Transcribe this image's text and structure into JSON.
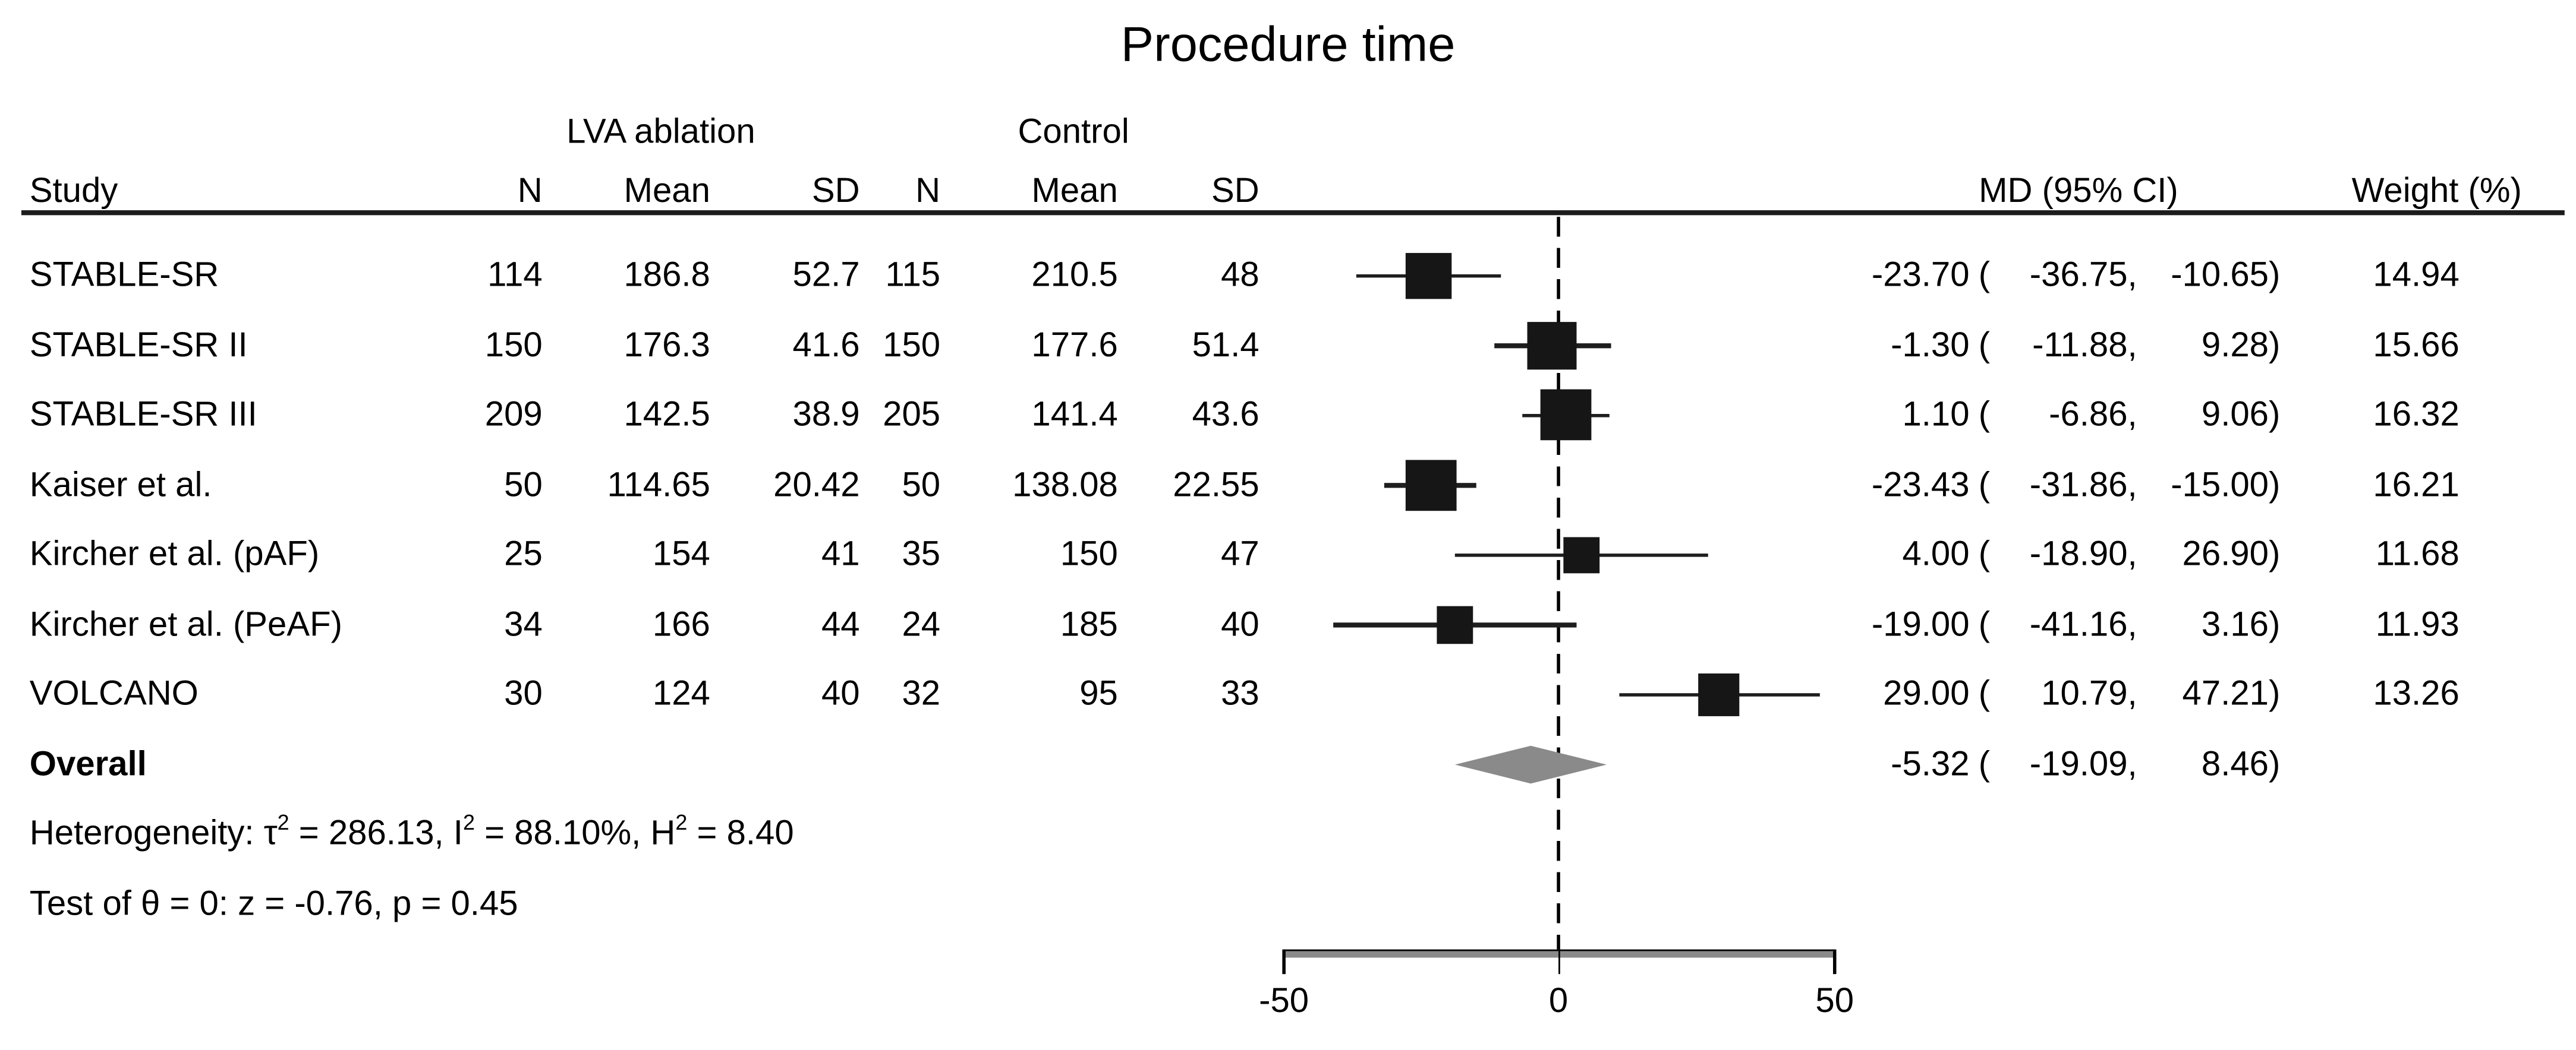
{
  "title": "Procedure time",
  "labels": {
    "group1": "LVA ablation",
    "group2": "Control",
    "study": "Study",
    "n": "N",
    "mean": "Mean",
    "sd": "SD",
    "md_ci": "MD (95% CI)",
    "weight": "Weight (%)",
    "open_paren": "(",
    "close_paren": ")",
    "overall": "Overall",
    "het_prefix": "Heterogeneity: τ",
    "sup2": "2",
    "het_mid1": " = 286.13, I",
    "het_mid2": " = 88.10%, H",
    "het_tail": " = 8.40",
    "test_line": "Test of θ = 0: z = -0.76, p = 0.45"
  },
  "chart_data": {
    "type": "forest",
    "title": "Procedure time",
    "effect_measure": "MD (95% CI)",
    "axis": {
      "ticks": [
        -50,
        0,
        50
      ],
      "tick_labels": [
        "-50",
        "0",
        "50"
      ],
      "zero_line": 0,
      "xlim": [
        -58,
        58
      ]
    },
    "columns": [
      "Study",
      "N",
      "Mean",
      "SD",
      "N",
      "Mean",
      "SD",
      "MD (95% CI)",
      "Weight (%)"
    ],
    "groups": [
      "LVA ablation",
      "Control"
    ],
    "rows": [
      {
        "study": "STABLE-SR",
        "n1": "114",
        "mean1": "186.8",
        "sd1": "52.7",
        "n2": "115",
        "mean2": "210.5",
        "sd2": "48",
        "md": -23.7,
        "ci_lo": -36.75,
        "ci_hi": -10.65,
        "weight": 14.94,
        "md_label": "-23.70",
        "ci_lo_label": "-36.75,",
        "ci_hi_label": "-10.65",
        "weight_label": "14.94"
      },
      {
        "study": "STABLE-SR II",
        "n1": "150",
        "mean1": "176.3",
        "sd1": "41.6",
        "n2": "150",
        "mean2": "177.6",
        "sd2": "51.4",
        "md": -1.3,
        "ci_lo": -11.88,
        "ci_hi": 9.28,
        "weight": 15.66,
        "md_label": "-1.30",
        "ci_lo_label": "-11.88,",
        "ci_hi_label": "9.28",
        "weight_label": "15.66"
      },
      {
        "study": "STABLE-SR III",
        "n1": "209",
        "mean1": "142.5",
        "sd1": "38.9",
        "n2": "205",
        "mean2": "141.4",
        "sd2": "43.6",
        "md": 1.1,
        "ci_lo": -6.86,
        "ci_hi": 9.06,
        "weight": 16.32,
        "md_label": "1.10",
        "ci_lo_label": "-6.86,",
        "ci_hi_label": "9.06",
        "weight_label": "16.32"
      },
      {
        "study": "Kaiser et al.",
        "n1": "50",
        "mean1": "114.65",
        "sd1": "20.42",
        "n2": "50",
        "mean2": "138.08",
        "sd2": "22.55",
        "md": -23.43,
        "ci_lo": -31.86,
        "ci_hi": -15.0,
        "weight": 16.21,
        "md_label": "-23.43",
        "ci_lo_label": "-31.86,",
        "ci_hi_label": "-15.00",
        "weight_label": "16.21"
      },
      {
        "study": "Kircher et al. (pAF)",
        "n1": "25",
        "mean1": "154",
        "sd1": "41",
        "n2": "35",
        "mean2": "150",
        "sd2": "47",
        "md": 4.0,
        "ci_lo": -18.9,
        "ci_hi": 26.9,
        "weight": 11.68,
        "md_label": "4.00",
        "ci_lo_label": "-18.90,",
        "ci_hi_label": "26.90",
        "weight_label": "11.68"
      },
      {
        "study": "Kircher et al. (PeAF)",
        "n1": "34",
        "mean1": "166",
        "sd1": "44",
        "n2": "24",
        "mean2": "185",
        "sd2": "40",
        "md": -19.0,
        "ci_lo": -41.16,
        "ci_hi": 3.16,
        "weight": 11.93,
        "md_label": "-19.00",
        "ci_lo_label": "-41.16,",
        "ci_hi_label": "3.16",
        "weight_label": "11.93"
      },
      {
        "study": "VOLCANO",
        "n1": "30",
        "mean1": "124",
        "sd1": "40",
        "n2": "32",
        "mean2": "95",
        "sd2": "33",
        "md": 29.0,
        "ci_lo": 10.79,
        "ci_hi": 47.21,
        "weight": 13.26,
        "md_label": "29.00",
        "ci_lo_label": "10.79,",
        "ci_hi_label": "47.21",
        "weight_label": "13.26"
      }
    ],
    "overall": {
      "label": "Overall",
      "md": -5.32,
      "ci_lo": -19.09,
      "ci_hi": 8.46,
      "md_label": "-5.32",
      "ci_lo_label": "-19.09,",
      "ci_hi_label": "8.46"
    },
    "heterogeneity": {
      "tau2": 286.13,
      "i2_pct": 88.1,
      "h2": 8.4
    },
    "test_of_theta": {
      "z": -0.76,
      "p": 0.45
    },
    "colors": {
      "marker": "#161616",
      "ci_line": "#1e1e1e",
      "diamond": "#8a8a8a",
      "axis_gray": "#8a8a8a",
      "text": "#000000"
    },
    "legend_position": "none",
    "grid": false
  }
}
